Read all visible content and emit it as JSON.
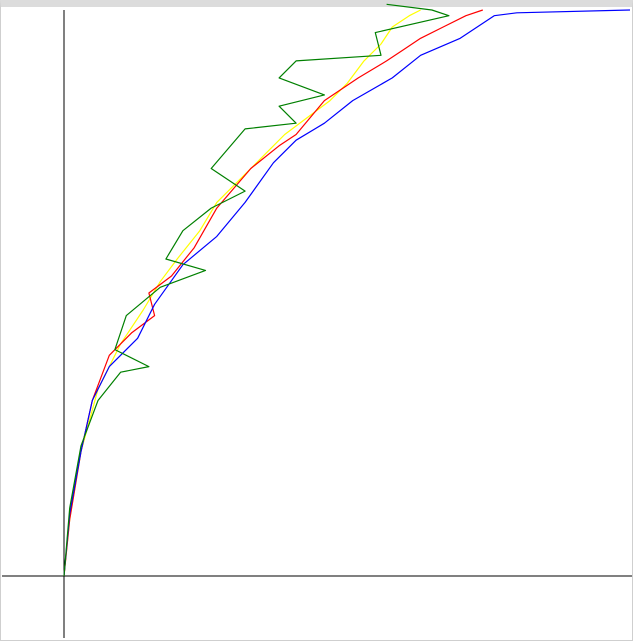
{
  "chart_data": {
    "type": "line",
    "title": "",
    "xlabel": "",
    "ylabel": "",
    "grid": false,
    "legend": "none",
    "xlim": [
      0,
      1
    ],
    "ylim": [
      0,
      1
    ],
    "series": [
      {
        "color": "#ffff00",
        "points": [
          [
            0,
            0
          ],
          [
            0.01,
            0.1
          ],
          [
            0.03,
            0.22
          ],
          [
            0.06,
            0.33
          ],
          [
            0.1,
            0.41
          ],
          [
            0.14,
            0.47
          ],
          [
            0.17,
            0.52
          ],
          [
            0.2,
            0.56
          ],
          [
            0.24,
            0.61
          ],
          [
            0.27,
            0.66
          ],
          [
            0.31,
            0.7
          ],
          [
            0.35,
            0.74
          ],
          [
            0.39,
            0.78
          ],
          [
            0.43,
            0.81
          ],
          [
            0.47,
            0.84
          ],
          [
            0.5,
            0.87
          ],
          [
            0.53,
            0.91
          ],
          [
            0.56,
            0.94
          ],
          [
            0.58,
            0.97
          ],
          [
            0.61,
            0.99
          ],
          [
            0.63,
            1.0
          ]
        ]
      },
      {
        "color": "#ff0000",
        "points": [
          [
            0,
            0
          ],
          [
            0.01,
            0.1
          ],
          [
            0.03,
            0.22
          ],
          [
            0.05,
            0.31
          ],
          [
            0.08,
            0.39
          ],
          [
            0.12,
            0.43
          ],
          [
            0.16,
            0.46
          ],
          [
            0.15,
            0.5
          ],
          [
            0.19,
            0.53
          ],
          [
            0.23,
            0.58
          ],
          [
            0.27,
            0.65
          ],
          [
            0.33,
            0.72
          ],
          [
            0.38,
            0.76
          ],
          [
            0.41,
            0.78
          ],
          [
            0.46,
            0.84
          ],
          [
            0.52,
            0.88
          ],
          [
            0.57,
            0.91
          ],
          [
            0.6,
            0.93
          ],
          [
            0.63,
            0.95
          ],
          [
            0.67,
            0.97
          ],
          [
            0.71,
            0.99
          ],
          [
            0.74,
            1.0
          ]
        ]
      },
      {
        "color": "#0000ff",
        "points": [
          [
            0,
            0
          ],
          [
            0.01,
            0.11
          ],
          [
            0.03,
            0.22
          ],
          [
            0.05,
            0.31
          ],
          [
            0.08,
            0.37
          ],
          [
            0.13,
            0.42
          ],
          [
            0.16,
            0.48
          ],
          [
            0.21,
            0.55
          ],
          [
            0.27,
            0.6
          ],
          [
            0.32,
            0.66
          ],
          [
            0.37,
            0.73
          ],
          [
            0.41,
            0.77
          ],
          [
            0.46,
            0.8
          ],
          [
            0.51,
            0.84
          ],
          [
            0.58,
            0.88
          ],
          [
            0.63,
            0.92
          ],
          [
            0.7,
            0.95
          ],
          [
            0.76,
            0.99
          ],
          [
            0.8,
            0.995
          ],
          [
            1.0,
            1.0
          ]
        ]
      },
      {
        "color": "#008000",
        "points": [
          [
            0,
            0
          ],
          [
            0.01,
            0.12
          ],
          [
            0.03,
            0.23
          ],
          [
            0.06,
            0.31
          ],
          [
            0.1,
            0.36
          ],
          [
            0.15,
            0.37
          ],
          [
            0.09,
            0.4
          ],
          [
            0.11,
            0.46
          ],
          [
            0.17,
            0.51
          ],
          [
            0.25,
            0.54
          ],
          [
            0.18,
            0.56
          ],
          [
            0.21,
            0.61
          ],
          [
            0.26,
            0.65
          ],
          [
            0.32,
            0.68
          ],
          [
            0.26,
            0.72
          ],
          [
            0.32,
            0.79
          ],
          [
            0.41,
            0.8
          ],
          [
            0.38,
            0.83
          ],
          [
            0.46,
            0.85
          ],
          [
            0.38,
            0.88
          ],
          [
            0.41,
            0.91
          ],
          [
            0.56,
            0.92
          ],
          [
            0.55,
            0.96
          ],
          [
            0.68,
            0.99
          ],
          [
            0.65,
            1.0
          ],
          [
            0.57,
            1.01
          ]
        ]
      }
    ]
  }
}
